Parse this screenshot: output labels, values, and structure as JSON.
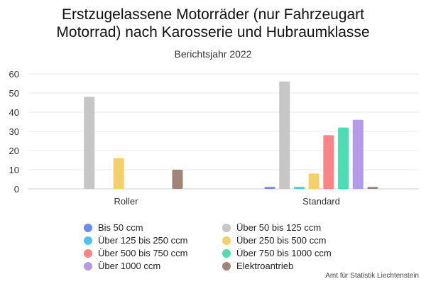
{
  "chart_data": {
    "type": "bar",
    "title": "Erstzugelassene Motorräder (nur Fahrzeugart Motorrad) nach Karosserie und Hubraumklasse",
    "title_lines": [
      "Erstzugelassene Motorräder (nur Fahrzeugart",
      "Motorrad) nach Karosserie und Hubraumklasse"
    ],
    "subtitle": "Berichtsjahr 2022",
    "categories": [
      "Roller",
      "Standard"
    ],
    "ylim": [
      0,
      60
    ],
    "yticks": [
      0,
      10,
      20,
      30,
      40,
      50,
      60
    ],
    "grid": true,
    "legend_position": "bottom",
    "series": [
      {
        "name": "Bis 50 ccm",
        "color": "#6a8cf0",
        "values": [
          0,
          1
        ]
      },
      {
        "name": "Über 50 bis 125 ccm",
        "color": "#c6c6c6",
        "values": [
          48,
          56
        ]
      },
      {
        "name": "Über 125 bis 250 ccm",
        "color": "#4cc3f0",
        "values": [
          0,
          1
        ]
      },
      {
        "name": "Über 250 bis 500 ccm",
        "color": "#f3d06b",
        "values": [
          16,
          8
        ]
      },
      {
        "name": "Über 500 bis 750 ccm",
        "color": "#f98585",
        "values": [
          0,
          28
        ]
      },
      {
        "name": "Über 750 bis 1000 ccm",
        "color": "#4fdcb5",
        "values": [
          0,
          32
        ]
      },
      {
        "name": "Über 1000 ccm",
        "color": "#b39be8",
        "values": [
          0,
          36
        ]
      },
      {
        "name": "Elektroantrieb",
        "color": "#a08478",
        "values": [
          10,
          1
        ]
      }
    ]
  },
  "source": "Amt für Statistik Liechtenstein"
}
